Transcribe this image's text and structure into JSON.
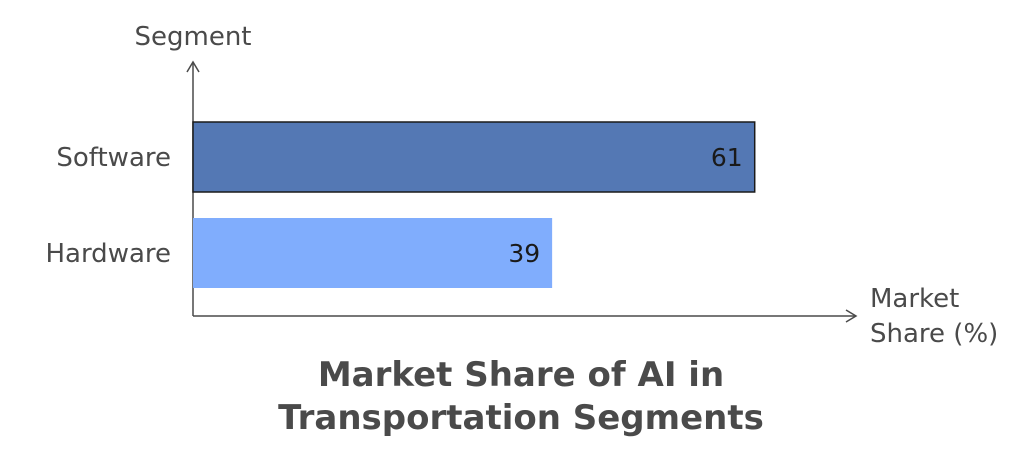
{
  "chart_data": {
    "type": "bar",
    "orientation": "horizontal",
    "title": "Market Share of AI in Transportation Segments",
    "title_lines": [
      "Market Share of AI in",
      "Transportation Segments"
    ],
    "xlabel": "Market Share (%)",
    "xlabel_lines": [
      "Market",
      "Share (%)"
    ],
    "ylabel": "Segment",
    "categories": [
      "Software",
      "Hardware"
    ],
    "values": [
      61,
      39
    ],
    "xlim": [
      0,
      72
    ],
    "colors": [
      "#5478b4",
      "#80adfd"
    ],
    "bar_outline": [
      "#1a1a1a",
      "none"
    ],
    "grid": false,
    "legend": "none"
  }
}
